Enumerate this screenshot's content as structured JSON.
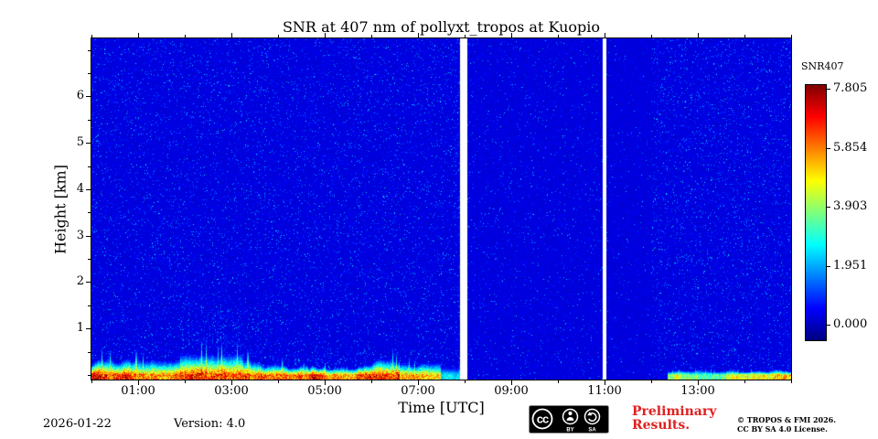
{
  "chart_data": {
    "type": "heatmap",
    "title": "SNR at 407 nm of pollyxt_tropos at Kuopio",
    "xlabel": "Time [UTC]",
    "ylabel": "Height [km]",
    "x_range_hours": [
      0,
      15
    ],
    "x_tick_hours": [
      1,
      3,
      5,
      7,
      9,
      11,
      13
    ],
    "x_ticks": [
      "01:00",
      "03:00",
      "05:00",
      "07:00",
      "09:00",
      "11:00",
      "13:00"
    ],
    "y_range_km": [
      -0.1,
      7.25
    ],
    "y_ticks": [
      1,
      2,
      3,
      4,
      5,
      6
    ],
    "grid": false,
    "colormap": "jet",
    "legend_position": "right",
    "colorbar": {
      "title": "SNR407",
      "vmin": 0.0,
      "vmax": 7.805,
      "tick_values": [
        7.805,
        5.854,
        3.903,
        1.951,
        0.0
      ],
      "tick_labels": [
        "7.805",
        "5.854",
        "3.903",
        "1.951",
        "0.000"
      ]
    },
    "background_snr": 0.7,
    "noise_regions": [
      {
        "t0": 0.0,
        "t1": 7.9,
        "speckle": 0.1
      },
      {
        "t0": 8.05,
        "t1": 10.96,
        "speckle": 0.045
      },
      {
        "t0": 11.04,
        "t1": 12.0,
        "speckle": 0.02
      },
      {
        "t0": 12.0,
        "t1": 15.0,
        "speckle": 0.11
      }
    ],
    "surface_layers": [
      {
        "t0": 0.0,
        "t1": 1.9,
        "peak_snr": 6.6,
        "top_km": 0.3,
        "plume_km": 0.6,
        "plume_prob": 0.3
      },
      {
        "t0": 1.9,
        "t1": 3.25,
        "peak_snr": 7.2,
        "top_km": 0.4,
        "plume_km": 1.9,
        "plume_prob": 0.55
      },
      {
        "t0": 3.25,
        "t1": 5.0,
        "peak_snr": 6.9,
        "top_km": 0.33,
        "plume_km": 0.8,
        "plume_prob": 0.3
      },
      {
        "t0": 5.0,
        "t1": 6.6,
        "peak_snr": 6.5,
        "top_km": 0.3,
        "plume_km": 0.6,
        "plume_prob": 0.28
      },
      {
        "t0": 6.6,
        "t1": 7.5,
        "peak_snr": 5.0,
        "top_km": 0.24,
        "plume_km": 0.45,
        "plume_prob": 0.22
      },
      {
        "t0": 7.5,
        "t1": 7.9,
        "peak_snr": 2.8,
        "top_km": 0.18,
        "plume_km": 0.3,
        "plume_prob": 0.15
      },
      {
        "t0": 12.35,
        "t1": 13.6,
        "peak_snr": 4.0,
        "top_km": 0.12,
        "plume_km": 0.2,
        "plume_prob": 0.15
      },
      {
        "t0": 13.6,
        "t1": 15.0,
        "peak_snr": 4.8,
        "top_km": 0.16,
        "plume_km": 0.28,
        "plume_prob": 0.2
      }
    ],
    "data_gaps_hours": [
      [
        7.9,
        8.05
      ],
      [
        10.96,
        11.04
      ]
    ]
  },
  "footer": {
    "date": "2026-01-22",
    "version": "Version: 4.0",
    "preliminary_line1": "Preliminary",
    "preliminary_line2": "Results.",
    "copyright_line1": "© TROPOS & FMI 2026.",
    "copyright_line2": "CC BY SA 4.0 License.",
    "license_badge": {
      "cc_label": "cc",
      "by_label": "BY",
      "sa_label": "SA"
    }
  },
  "colors": {
    "preliminary_text": "#e02020",
    "axis": "#000000",
    "plot_background_blue": "#0028dc"
  }
}
